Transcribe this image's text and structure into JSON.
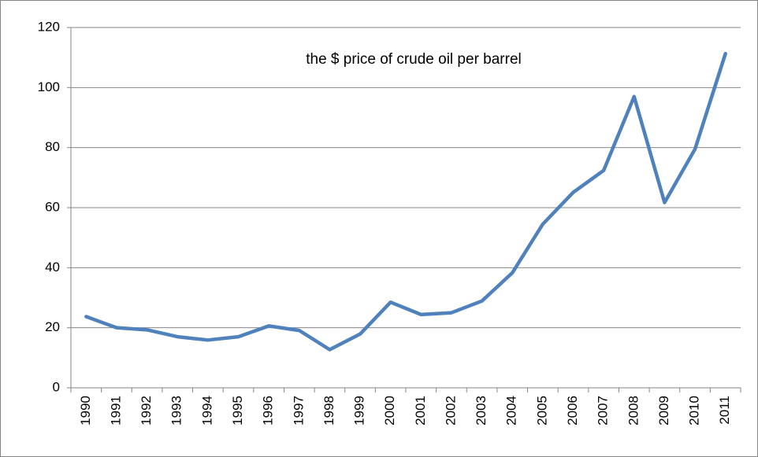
{
  "chart_data": {
    "type": "line",
    "annotation": "the $ price of crude oil per barrel",
    "categories": [
      "1990",
      "1991",
      "1992",
      "1993",
      "1994",
      "1995",
      "1996",
      "1997",
      "1998",
      "1999",
      "2000",
      "2001",
      "2002",
      "2003",
      "2004",
      "2005",
      "2006",
      "2007",
      "2008",
      "2009",
      "2010",
      "2011"
    ],
    "series": [
      {
        "name": "crude oil price",
        "color": "#4f81bd",
        "values": [
          23.7,
          20.0,
          19.3,
          17.0,
          15.9,
          17.0,
          20.6,
          19.1,
          12.7,
          17.9,
          28.5,
          24.4,
          25.0,
          28.9,
          38.3,
          54.5,
          65.1,
          72.4,
          97.0,
          61.7,
          79.5,
          111.3
        ]
      }
    ],
    "ylim": [
      0,
      120
    ],
    "yticks": [
      0,
      20,
      40,
      60,
      80,
      100,
      120
    ],
    "grid": true
  }
}
